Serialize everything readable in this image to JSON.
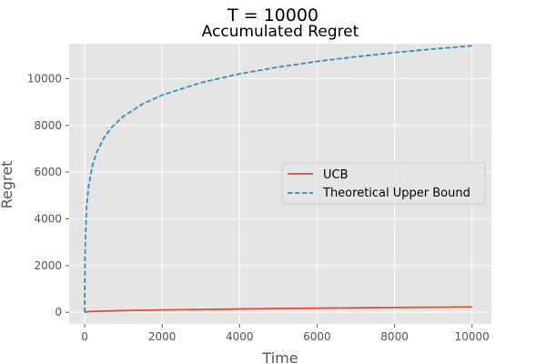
{
  "chart_data": {
    "type": "line",
    "suptitle": "T = 10000",
    "title": "Accumulated Regret",
    "xlabel": "Time",
    "ylabel": "Regret",
    "xlim": [
      -400,
      10500
    ],
    "ylim": [
      -500,
      11500
    ],
    "xticks": [
      0,
      2000,
      4000,
      6000,
      8000,
      10000
    ],
    "yticks": [
      0,
      2000,
      4000,
      6000,
      8000,
      10000
    ],
    "grid": true,
    "legend": "center-right",
    "series": [
      {
        "name": "UCB",
        "color": "#e24a33",
        "dash": "solid",
        "x": [
          0,
          50,
          100,
          200,
          500,
          1000,
          1500,
          2000,
          3000,
          4000,
          5000,
          6000,
          7000,
          8000,
          9000,
          10000
        ],
        "y": [
          0,
          15,
          25,
          35,
          50,
          70,
          85,
          100,
          120,
          140,
          160,
          175,
          190,
          205,
          215,
          230
        ]
      },
      {
        "name": "Theoretical Upper Bound",
        "color": "#348abd",
        "dash": "dashed",
        "x": [
          0,
          5,
          10,
          20,
          50,
          100,
          200,
          300,
          500,
          700,
          1000,
          1500,
          2000,
          3000,
          4000,
          5000,
          6000,
          7000,
          8000,
          9000,
          10000
        ],
        "y": [
          0,
          1440,
          2350,
          3260,
          4460,
          5370,
          6280,
          6810,
          7480,
          7920,
          8390,
          8920,
          9300,
          9830,
          10210,
          10500,
          10740,
          10940,
          11120,
          11270,
          11410
        ]
      }
    ]
  }
}
